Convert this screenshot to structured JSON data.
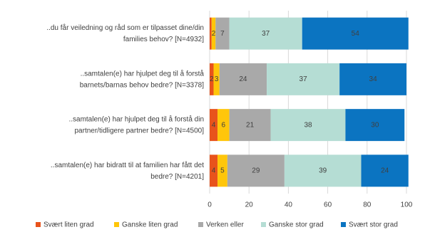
{
  "chart_data": {
    "type": "stacked-barh",
    "categories": [
      "..du får veiledning og råd som er tilpasset dine/din\nfamilies behov? [N=4932]",
      "..samtalen(e) har hjulpet deg til å forstå\nbarnets/barnas behov bedre? [N=3378]",
      "..samtalen(e) har hjulpet deg til å forstå din\npartner/tidligere partner bedre? [N=4500]",
      "..samtalen(e) har bidratt til at familien har fått det\nbedre? [N=4201]"
    ],
    "series": [
      {
        "name": "Svært liten grad",
        "color": "#e8531c",
        "values": [
          1,
          2,
          4,
          4
        ],
        "value_labels": [
          null,
          "2",
          "4",
          "4"
        ]
      },
      {
        "name": "Ganske liten grad",
        "color": "#ffc60a",
        "values": [
          2,
          3,
          6,
          5
        ]
      },
      {
        "name": "Verken eller",
        "color": "#a9a9a9",
        "values": [
          7,
          24,
          21,
          29
        ]
      },
      {
        "name": "Ganske stor grad",
        "color": "#b5ddd4",
        "values": [
          37,
          37,
          38,
          39
        ]
      },
      {
        "name": "Svært stor grad",
        "color": "#0b74c1",
        "values": [
          54,
          34,
          30,
          24
        ]
      }
    ],
    "xlim": [
      0,
      100
    ],
    "xticks": [
      0,
      20,
      40,
      60,
      80,
      100
    ],
    "grid": true,
    "legend": "bottom"
  }
}
